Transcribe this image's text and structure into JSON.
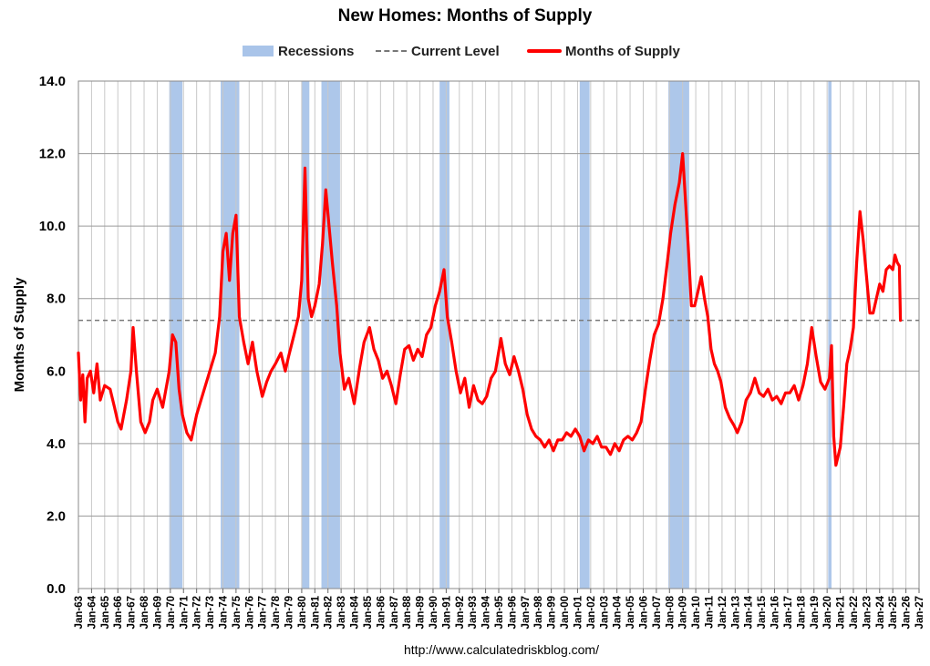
{
  "title": "New Homes: Months of Supply",
  "legend": {
    "recessions": "Recessions",
    "current_level": "Current Level",
    "series": "Months of Supply"
  },
  "source": "http://www.calculatedriskblog.com/",
  "colors": {
    "recession": "#a9c4e9",
    "series": "#ff0000",
    "current_level": "#7a7a7a",
    "grid": "#c8c8c8"
  },
  "chart_data": {
    "type": "line",
    "title": "New Homes: Months of Supply",
    "ylabel": "Months of Supply",
    "xlabel": "",
    "ylim": [
      0,
      14
    ],
    "xlim": [
      "Jan-63",
      "Jan-27"
    ],
    "grid": true,
    "legend_position": "top",
    "y_ticks": [
      "0.0",
      "2.0",
      "4.0",
      "6.0",
      "8.0",
      "10.0",
      "12.0",
      "14.0"
    ],
    "x_ticks": [
      "Jan-63",
      "Jan-64",
      "Jan-65",
      "Jan-66",
      "Jan-67",
      "Jan-68",
      "Jan-69",
      "Jan-70",
      "Jan-71",
      "Jan-72",
      "Jan-73",
      "Jan-74",
      "Jan-75",
      "Jan-76",
      "Jan-77",
      "Jan-78",
      "Jan-79",
      "Jan-80",
      "Jan-81",
      "Jan-82",
      "Jan-83",
      "Jan-84",
      "Jan-85",
      "Jan-86",
      "Jan-87",
      "Jan-88",
      "Jan-89",
      "Jan-90",
      "Jan-91",
      "Jan-92",
      "Jan-93",
      "Jan-94",
      "Jan-95",
      "Jan-96",
      "Jan-97",
      "Jan-98",
      "Jan-99",
      "Jan-00",
      "Jan-01",
      "Jan-02",
      "Jan-03",
      "Jan-04",
      "Jan-05",
      "Jan-06",
      "Jan-07",
      "Jan-08",
      "Jan-09",
      "Jan-10",
      "Jan-11",
      "Jan-12",
      "Jan-13",
      "Jan-14",
      "Jan-15",
      "Jan-16",
      "Jan-17",
      "Jan-18",
      "Jan-19",
      "Jan-20",
      "Jan-21",
      "Jan-22",
      "Jan-23",
      "Jan-24",
      "Jan-25",
      "Jan-26",
      "Jan-27"
    ],
    "current_level": 7.4,
    "recessions": [
      {
        "start": "1969-12",
        "end": "1970-11"
      },
      {
        "start": "1973-11",
        "end": "1975-03"
      },
      {
        "start": "1980-01",
        "end": "1980-07"
      },
      {
        "start": "1981-07",
        "end": "1982-11"
      },
      {
        "start": "1990-07",
        "end": "1991-03"
      },
      {
        "start": "2001-03",
        "end": "2001-11"
      },
      {
        "start": "2007-12",
        "end": "2009-06"
      },
      {
        "start": "2020-02",
        "end": "2020-04"
      }
    ],
    "series": [
      {
        "name": "Months of Supply",
        "points": [
          [
            "1963-01",
            6.5
          ],
          [
            "1963-03",
            5.2
          ],
          [
            "1963-05",
            5.9
          ],
          [
            "1963-07",
            4.6
          ],
          [
            "1963-09",
            5.8
          ],
          [
            "1963-12",
            6.0
          ],
          [
            "1964-03",
            5.4
          ],
          [
            "1964-06",
            6.2
          ],
          [
            "1964-09",
            5.2
          ],
          [
            "1965-01",
            5.6
          ],
          [
            "1965-06",
            5.5
          ],
          [
            "1965-10",
            5.0
          ],
          [
            "1966-01",
            4.6
          ],
          [
            "1966-04",
            4.4
          ],
          [
            "1966-09",
            5.2
          ],
          [
            "1967-01",
            6.0
          ],
          [
            "1967-03",
            7.2
          ],
          [
            "1967-06",
            6.0
          ],
          [
            "1967-10",
            4.6
          ],
          [
            "1968-02",
            4.3
          ],
          [
            "1968-06",
            4.6
          ],
          [
            "1968-09",
            5.2
          ],
          [
            "1969-01",
            5.5
          ],
          [
            "1969-06",
            5.0
          ],
          [
            "1969-12",
            6.0
          ],
          [
            "1970-03",
            7.0
          ],
          [
            "1970-06",
            6.8
          ],
          [
            "1970-09",
            5.5
          ],
          [
            "1970-12",
            4.8
          ],
          [
            "1971-04",
            4.3
          ],
          [
            "1971-08",
            4.1
          ],
          [
            "1972-01",
            4.8
          ],
          [
            "1972-06",
            5.3
          ],
          [
            "1973-01",
            6.0
          ],
          [
            "1973-06",
            6.5
          ],
          [
            "1973-10",
            7.5
          ],
          [
            "1974-01",
            9.3
          ],
          [
            "1974-04",
            9.8
          ],
          [
            "1974-07",
            8.5
          ],
          [
            "1974-10",
            9.8
          ],
          [
            "1975-01",
            10.3
          ],
          [
            "1975-04",
            7.5
          ],
          [
            "1975-08",
            6.8
          ],
          [
            "1975-12",
            6.2
          ],
          [
            "1976-04",
            6.8
          ],
          [
            "1976-08",
            6.0
          ],
          [
            "1977-01",
            5.3
          ],
          [
            "1977-05",
            5.7
          ],
          [
            "1977-09",
            6.0
          ],
          [
            "1978-01",
            6.2
          ],
          [
            "1978-06",
            6.5
          ],
          [
            "1978-10",
            6.0
          ],
          [
            "1979-01",
            6.4
          ],
          [
            "1979-06",
            7.0
          ],
          [
            "1979-10",
            7.5
          ],
          [
            "1980-01",
            8.5
          ],
          [
            "1980-04",
            11.6
          ],
          [
            "1980-07",
            8.0
          ],
          [
            "1980-10",
            7.5
          ],
          [
            "1981-01",
            7.8
          ],
          [
            "1981-05",
            8.4
          ],
          [
            "1981-08",
            9.5
          ],
          [
            "1981-11",
            11.0
          ],
          [
            "1982-02",
            10.0
          ],
          [
            "1982-05",
            9.0
          ],
          [
            "1982-09",
            7.8
          ],
          [
            "1982-12",
            6.5
          ],
          [
            "1983-04",
            5.5
          ],
          [
            "1983-08",
            5.8
          ],
          [
            "1984-01",
            5.1
          ],
          [
            "1984-06",
            6.1
          ],
          [
            "1984-10",
            6.8
          ],
          [
            "1985-03",
            7.2
          ],
          [
            "1985-07",
            6.6
          ],
          [
            "1985-11",
            6.3
          ],
          [
            "1986-03",
            5.8
          ],
          [
            "1986-07",
            6.0
          ],
          [
            "1986-11",
            5.6
          ],
          [
            "1987-03",
            5.1
          ],
          [
            "1987-07",
            5.9
          ],
          [
            "1987-11",
            6.6
          ],
          [
            "1988-03",
            6.7
          ],
          [
            "1988-07",
            6.3
          ],
          [
            "1988-11",
            6.6
          ],
          [
            "1989-03",
            6.4
          ],
          [
            "1989-07",
            7.0
          ],
          [
            "1989-11",
            7.2
          ],
          [
            "1990-03",
            7.8
          ],
          [
            "1990-07",
            8.2
          ],
          [
            "1990-11",
            8.8
          ],
          [
            "1991-02",
            7.5
          ],
          [
            "1991-06",
            6.8
          ],
          [
            "1991-10",
            6.0
          ],
          [
            "1992-02",
            5.4
          ],
          [
            "1992-06",
            5.8
          ],
          [
            "1992-10",
            5.0
          ],
          [
            "1993-02",
            5.6
          ],
          [
            "1993-06",
            5.2
          ],
          [
            "1993-10",
            5.1
          ],
          [
            "1994-02",
            5.3
          ],
          [
            "1994-06",
            5.8
          ],
          [
            "1994-10",
            6.0
          ],
          [
            "1995-03",
            6.9
          ],
          [
            "1995-07",
            6.2
          ],
          [
            "1995-11",
            5.9
          ],
          [
            "1996-03",
            6.4
          ],
          [
            "1996-07",
            6.0
          ],
          [
            "1996-11",
            5.5
          ],
          [
            "1997-03",
            4.8
          ],
          [
            "1997-07",
            4.4
          ],
          [
            "1997-11",
            4.2
          ],
          [
            "1998-03",
            4.1
          ],
          [
            "1998-07",
            3.9
          ],
          [
            "1998-11",
            4.1
          ],
          [
            "1999-03",
            3.8
          ],
          [
            "1999-07",
            4.1
          ],
          [
            "1999-11",
            4.1
          ],
          [
            "2000-03",
            4.3
          ],
          [
            "2000-07",
            4.2
          ],
          [
            "2000-11",
            4.4
          ],
          [
            "2001-03",
            4.2
          ],
          [
            "2001-07",
            3.8
          ],
          [
            "2001-11",
            4.1
          ],
          [
            "2002-03",
            4.0
          ],
          [
            "2002-07",
            4.2
          ],
          [
            "2002-11",
            3.9
          ],
          [
            "2003-03",
            3.9
          ],
          [
            "2003-07",
            3.7
          ],
          [
            "2003-11",
            4.0
          ],
          [
            "2004-03",
            3.8
          ],
          [
            "2004-07",
            4.1
          ],
          [
            "2004-11",
            4.2
          ],
          [
            "2005-03",
            4.1
          ],
          [
            "2005-07",
            4.3
          ],
          [
            "2005-11",
            4.6
          ],
          [
            "2006-03",
            5.5
          ],
          [
            "2006-07",
            6.3
          ],
          [
            "2006-11",
            7.0
          ],
          [
            "2007-03",
            7.3
          ],
          [
            "2007-07",
            8.0
          ],
          [
            "2007-11",
            9.0
          ],
          [
            "2008-02",
            9.8
          ],
          [
            "2008-06",
            10.6
          ],
          [
            "2008-10",
            11.2
          ],
          [
            "2009-01",
            12.0
          ],
          [
            "2009-03",
            11.0
          ],
          [
            "2009-06",
            9.5
          ],
          [
            "2009-09",
            7.8
          ],
          [
            "2009-12",
            7.8
          ],
          [
            "2010-03",
            8.2
          ],
          [
            "2010-06",
            8.6
          ],
          [
            "2010-09",
            8.0
          ],
          [
            "2010-12",
            7.5
          ],
          [
            "2011-03",
            6.6
          ],
          [
            "2011-06",
            6.2
          ],
          [
            "2011-09",
            6.0
          ],
          [
            "2011-12",
            5.7
          ],
          [
            "2012-04",
            5.0
          ],
          [
            "2012-08",
            4.7
          ],
          [
            "2012-12",
            4.5
          ],
          [
            "2013-03",
            4.3
          ],
          [
            "2013-07",
            4.6
          ],
          [
            "2013-11",
            5.2
          ],
          [
            "2014-03",
            5.4
          ],
          [
            "2014-07",
            5.8
          ],
          [
            "2014-11",
            5.4
          ],
          [
            "2015-03",
            5.3
          ],
          [
            "2015-07",
            5.5
          ],
          [
            "2015-11",
            5.2
          ],
          [
            "2016-03",
            5.3
          ],
          [
            "2016-07",
            5.1
          ],
          [
            "2016-11",
            5.4
          ],
          [
            "2017-03",
            5.4
          ],
          [
            "2017-07",
            5.6
          ],
          [
            "2017-11",
            5.2
          ],
          [
            "2018-03",
            5.6
          ],
          [
            "2018-07",
            6.2
          ],
          [
            "2018-11",
            7.2
          ],
          [
            "2019-03",
            6.4
          ],
          [
            "2019-07",
            5.7
          ],
          [
            "2019-11",
            5.5
          ],
          [
            "2020-03",
            5.8
          ],
          [
            "2020-05",
            6.7
          ],
          [
            "2020-07",
            4.2
          ],
          [
            "2020-09",
            3.4
          ],
          [
            "2021-01",
            3.9
          ],
          [
            "2021-04",
            5.0
          ],
          [
            "2021-07",
            6.2
          ],
          [
            "2021-10",
            6.6
          ],
          [
            "2022-01",
            7.2
          ],
          [
            "2022-04",
            9.0
          ],
          [
            "2022-07",
            10.4
          ],
          [
            "2022-10",
            9.6
          ],
          [
            "2023-01",
            8.6
          ],
          [
            "2023-04",
            7.6
          ],
          [
            "2023-07",
            7.6
          ],
          [
            "2023-10",
            8.0
          ],
          [
            "2024-01",
            8.4
          ],
          [
            "2024-04",
            8.2
          ],
          [
            "2024-07",
            8.8
          ],
          [
            "2024-10",
            8.9
          ],
          [
            "2025-01",
            8.8
          ],
          [
            "2025-03",
            9.2
          ],
          [
            "2025-05",
            9.0
          ],
          [
            "2025-07",
            8.9
          ],
          [
            "2025-08",
            7.4
          ]
        ]
      }
    ]
  }
}
